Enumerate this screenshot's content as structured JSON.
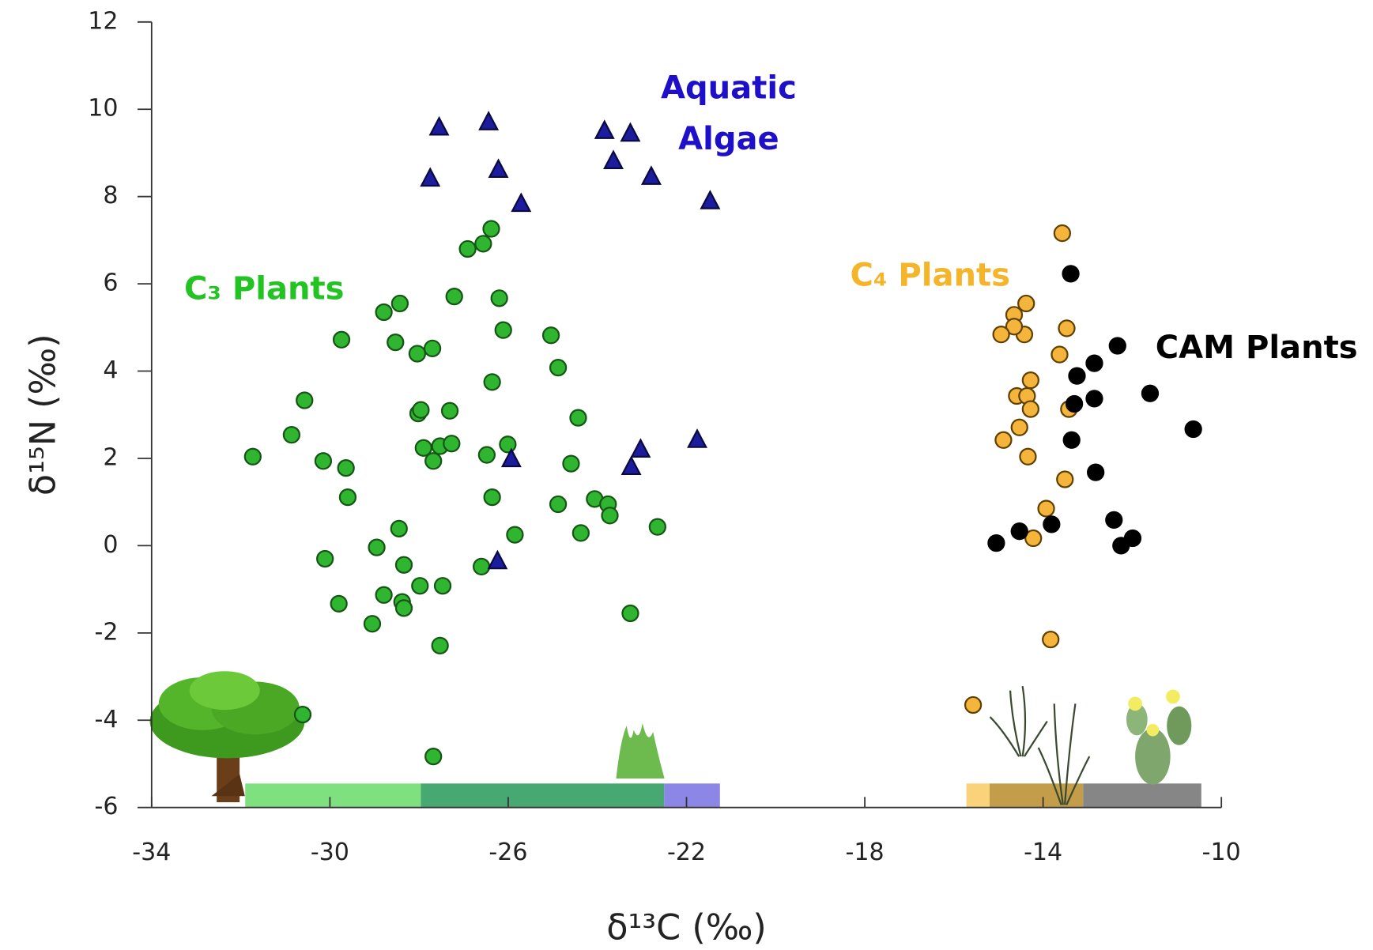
{
  "chart_data": {
    "type": "scatter",
    "x_label": "δ¹³C (‰)",
    "y_label": "δ¹⁵N (‰)",
    "xlim": [
      -34,
      -10
    ],
    "xticks": [
      -34,
      -30,
      -26,
      -22,
      -18,
      -14,
      -10
    ],
    "ylim": [
      -6,
      12
    ],
    "yticks": [
      -6,
      -4,
      -2,
      0,
      2,
      4,
      6,
      8,
      10,
      12
    ],
    "grid": false,
    "series": [
      {
        "name": "C₃ Plants",
        "color": "#2fb52f",
        "edge": "#155515",
        "label_color": "#22c322",
        "marker": "circle",
        "x": [
          -31.73,
          -30.86,
          -30.57,
          -30.61,
          -30.15,
          -30.11,
          -29.8,
          -29.74,
          -29.64,
          -29.6,
          -29.05,
          -28.95,
          -28.79,
          -28.79,
          -28.53,
          -28.45,
          -28.43,
          -28.38,
          -28.34,
          -28.34,
          -28.04,
          -28.02,
          -27.98,
          -27.96,
          -27.9,
          -27.7,
          -27.68,
          -27.68,
          -27.53,
          -27.53,
          -27.47,
          -27.31,
          -27.27,
          -27.21,
          -26.91,
          -26.6,
          -26.56,
          -26.48,
          -26.38,
          -26.36,
          -26.36,
          -26.2,
          -26.11,
          -26.01,
          -25.85,
          -25.04,
          -24.88,
          -24.88,
          -24.59,
          -24.43,
          -24.37,
          -24.06,
          -23.76,
          -23.72,
          -23.26,
          -22.65
        ],
        "y": [
          2.04,
          2.54,
          3.33,
          -3.87,
          1.94,
          -0.3,
          -1.33,
          4.72,
          1.78,
          1.11,
          -1.79,
          -0.04,
          5.35,
          -1.13,
          4.66,
          0.39,
          5.55,
          -1.29,
          -1.43,
          -0.44,
          4.4,
          3.03,
          -0.92,
          3.11,
          2.24,
          4.52,
          1.94,
          -4.83,
          2.28,
          -2.29,
          -0.92,
          3.09,
          2.34,
          5.71,
          6.8,
          -0.48,
          6.92,
          2.08,
          7.26,
          3.75,
          1.11,
          5.67,
          4.94,
          2.32,
          0.25,
          4.82,
          4.08,
          0.95,
          1.88,
          2.93,
          0.29,
          1.07,
          0.95,
          0.69,
          -1.55,
          0.43
        ]
      },
      {
        "name": "Aquatic Algae",
        "color": "#1c1c9e",
        "edge": "#0a0a40",
        "label_color": "#1d10c8",
        "marker": "triangle",
        "x": [
          -27.55,
          -27.75,
          -26.44,
          -26.22,
          -25.71,
          -26.24,
          -25.93,
          -23.84,
          -23.26,
          -23.64,
          -22.79,
          -21.47,
          -23.24,
          -23.03,
          -21.76
        ],
        "y": [
          9.58,
          8.41,
          9.7,
          8.61,
          7.83,
          -0.36,
          1.98,
          9.5,
          9.44,
          8.81,
          8.45,
          7.89,
          1.8,
          2.2,
          2.42
        ]
      },
      {
        "name": "C₄ Plants",
        "color": "#f5b53d",
        "edge": "#5e4100",
        "label_color": "#f5b52a",
        "marker": "circle",
        "x": [
          -13.57,
          -14.38,
          -14.65,
          -14.42,
          -14.65,
          -14.94,
          -13.47,
          -13.63,
          -14.28,
          -14.59,
          -14.36,
          -14.28,
          -13.42,
          -14.53,
          -14.89,
          -14.34,
          -13.51,
          -13.93,
          -14.22,
          -13.83,
          -15.57
        ],
        "y": [
          7.16,
          5.55,
          5.29,
          4.84,
          5.02,
          4.84,
          4.98,
          4.38,
          3.79,
          3.43,
          3.43,
          3.13,
          3.13,
          2.71,
          2.42,
          2.04,
          1.52,
          0.85,
          0.17,
          -2.15,
          -3.65
        ]
      },
      {
        "name": "CAM Plants",
        "color": "#000000",
        "edge": "#000000",
        "label_color": "#000000",
        "marker": "circle",
        "x": [
          -13.38,
          -12.33,
          -12.85,
          -13.24,
          -11.6,
          -12.85,
          -13.3,
          -10.63,
          -13.36,
          -12.82,
          -13.81,
          -14.53,
          -15.05,
          -12.41,
          -11.99,
          -12.25
        ],
        "y": [
          6.23,
          4.58,
          4.18,
          3.89,
          3.49,
          3.37,
          3.25,
          2.67,
          2.42,
          1.68,
          0.49,
          0.33,
          0.06,
          0.59,
          0.17,
          0
        ]
      }
    ],
    "ranges": [
      {
        "from": -31.9,
        "to": -27.96,
        "color": "#7fe07f"
      },
      {
        "from": -27.96,
        "to": -22.5,
        "color": "#48a872"
      },
      {
        "from": -22.5,
        "to": -21.25,
        "color": "#8c86e6"
      },
      {
        "from": -15.72,
        "to": -15.2,
        "color": "#f9d27a"
      },
      {
        "from": -15.2,
        "to": -13.1,
        "color": "#c39d4a"
      },
      {
        "from": -13.1,
        "to": -10.45,
        "color": "#868686"
      }
    ],
    "range_band": [
      -6,
      -5.45
    ]
  }
}
